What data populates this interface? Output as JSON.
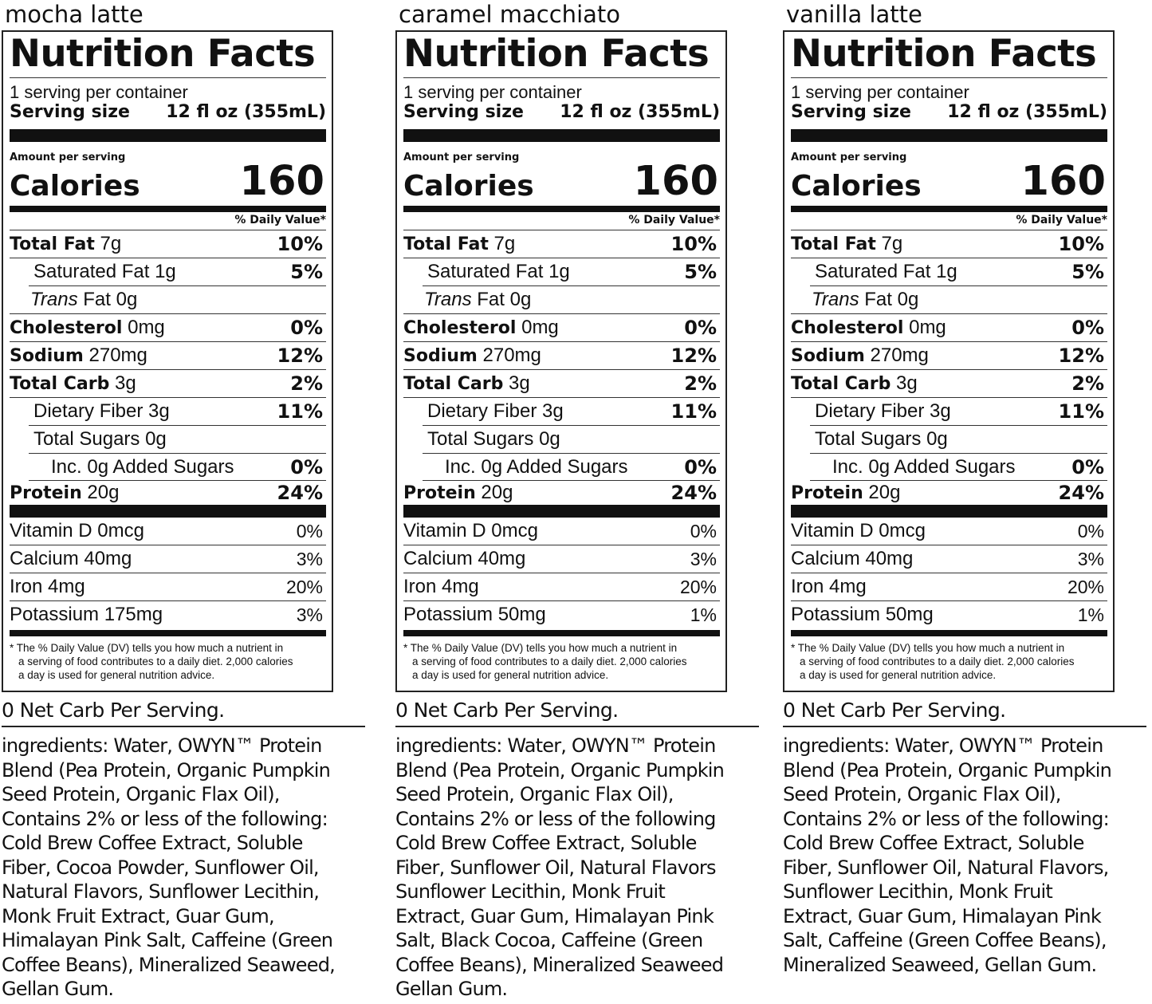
{
  "panels": [
    {
      "product": "mocha latte",
      "title": "Nutrition Facts",
      "servings_per_container": "1 serving per container",
      "serving_size_label": "Serving size",
      "serving_size_value": "12 fl oz (355mL)",
      "amount_per_serving": "Amount per serving",
      "calories_label": "Calories",
      "calories_value": "160",
      "dv_header": "% Daily Value*",
      "total_fat_label": "Total Fat",
      "total_fat_amount": "7g",
      "total_fat_dv": "10%",
      "sat_fat": "Saturated Fat 1g",
      "sat_fat_dv": "5%",
      "trans_fat_italic": "Trans",
      "trans_fat_rest": " Fat 0g",
      "cholesterol_label": "Cholesterol",
      "cholesterol_amount": "0mg",
      "cholesterol_dv": "0%",
      "sodium_label": "Sodium",
      "sodium_amount": "270mg",
      "sodium_dv": "12%",
      "carb_label": "Total Carb",
      "carb_amount": "3g",
      "carb_dv": "2%",
      "fiber": "Dietary Fiber 3g",
      "fiber_dv": "11%",
      "sugars": "Total Sugars 0g",
      "added_sugars": "Inc. 0g Added Sugars",
      "added_sugars_dv": "0%",
      "protein_label": "Protein",
      "protein_amount": "20g",
      "protein_dv": "24%",
      "vitamin_d": "Vitamin D 0mcg",
      "vitamin_d_dv": "0%",
      "calcium": "Calcium 40mg",
      "calcium_dv": "3%",
      "iron": "Iron 4mg",
      "iron_dv": "20%",
      "potassium": "Potassium 175mg",
      "potassium_dv": "3%",
      "footnote_1": "* The % Daily Value (DV) tells you how much a nutrient in",
      "footnote_2": "a serving of food contributes to a daily diet. 2,000 calories",
      "footnote_3": "a day is used for general nutrition advice.",
      "net_carb": "0 Net Carb Per Serving.",
      "ingredients_lines": [
        "ingredients: Water, OWYN™ Protein",
        "Blend (Pea Protein, Organic Pumpkin",
        "Seed Protein, Organic Flax Oil),",
        "Contains 2% or less of the following:",
        "Cold Brew Coffee Extract, Soluble",
        "Fiber, Cocoa Powder, Sunflower Oil,",
        "Natural Flavors, Sunflower Lecithin,",
        "Monk Fruit Extract, Guar Gum,",
        "Himalayan Pink Salt, Caffeine (Green",
        "Coffee Beans), Mineralized Seaweed,",
        "Gellan Gum."
      ]
    },
    {
      "product": "caramel macchiato",
      "title": "Nutrition Facts",
      "servings_per_container": "1 serving per container",
      "serving_size_label": "Serving size",
      "serving_size_value": "12 fl oz (355mL)",
      "amount_per_serving": "Amount per serving",
      "calories_label": "Calories",
      "calories_value": "160",
      "dv_header": "% Daily Value*",
      "total_fat_label": "Total Fat",
      "total_fat_amount": "7g",
      "total_fat_dv": "10%",
      "sat_fat": "Saturated Fat 1g",
      "sat_fat_dv": "5%",
      "trans_fat_italic": "Trans",
      "trans_fat_rest": " Fat 0g",
      "cholesterol_label": "Cholesterol",
      "cholesterol_amount": "0mg",
      "cholesterol_dv": "0%",
      "sodium_label": "Sodium",
      "sodium_amount": "270mg",
      "sodium_dv": "12%",
      "carb_label": "Total Carb",
      "carb_amount": "3g",
      "carb_dv": "2%",
      "fiber": "Dietary Fiber 3g",
      "fiber_dv": "11%",
      "sugars": "Total Sugars 0g",
      "added_sugars": "Inc. 0g Added Sugars",
      "added_sugars_dv": "0%",
      "protein_label": "Protein",
      "protein_amount": "20g",
      "protein_dv": "24%",
      "vitamin_d": "Vitamin D 0mcg",
      "vitamin_d_dv": "0%",
      "calcium": "Calcium 40mg",
      "calcium_dv": "3%",
      "iron": "Iron 4mg",
      "iron_dv": "20%",
      "potassium": "Potassium 50mg",
      "potassium_dv": "1%",
      "footnote_1": "* The % Daily Value (DV) tells you how much a nutrient in",
      "footnote_2": "a serving of food contributes to a daily diet. 2,000 calories",
      "footnote_3": "a day is used for general nutrition advice.",
      "net_carb": "0 Net Carb Per Serving.",
      "ingredients_lines": [
        "ingredients: Water, OWYN™ Protein",
        "Blend (Pea Protein, Organic Pumpkin",
        "Seed Protein, Organic Flax Oil),",
        "Contains 2% or less of the following",
        "Cold Brew Coffee Extract, Soluble",
        "Fiber, Sunflower Oil, Natural Flavors",
        "Sunflower Lecithin, Monk Fruit",
        "Extract, Guar Gum, Himalayan Pink",
        "Salt, Black Cocoa, Caffeine (Green",
        "Coffee Beans), Mineralized Seaweed",
        "Gellan Gum."
      ]
    },
    {
      "product": "vanilla latte",
      "title": "Nutrition Facts",
      "servings_per_container": "1 serving per container",
      "serving_size_label": "Serving size",
      "serving_size_value": "12 fl oz (355mL)",
      "amount_per_serving": "Amount per serving",
      "calories_label": "Calories",
      "calories_value": "160",
      "dv_header": "% Daily Value*",
      "total_fat_label": "Total Fat",
      "total_fat_amount": "7g",
      "total_fat_dv": "10%",
      "sat_fat": "Saturated Fat 1g",
      "sat_fat_dv": "5%",
      "trans_fat_italic": "Trans",
      "trans_fat_rest": " Fat 0g",
      "cholesterol_label": "Cholesterol",
      "cholesterol_amount": "0mg",
      "cholesterol_dv": "0%",
      "sodium_label": "Sodium",
      "sodium_amount": "270mg",
      "sodium_dv": "12%",
      "carb_label": "Total Carb",
      "carb_amount": "3g",
      "carb_dv": "2%",
      "fiber": "Dietary Fiber 3g",
      "fiber_dv": "11%",
      "sugars": "Total Sugars 0g",
      "added_sugars": "Inc. 0g Added Sugars",
      "added_sugars_dv": "0%",
      "protein_label": "Protein",
      "protein_amount": "20g",
      "protein_dv": "24%",
      "vitamin_d": "Vitamin D 0mcg",
      "vitamin_d_dv": "0%",
      "calcium": "Calcium 40mg",
      "calcium_dv": "3%",
      "iron": "Iron 4mg",
      "iron_dv": "20%",
      "potassium": "Potassium 50mg",
      "potassium_dv": "1%",
      "footnote_1": "* The % Daily Value (DV) tells you how much a nutrient in",
      "footnote_2": "a serving of food contributes to a daily diet. 2,000 calories",
      "footnote_3": "a day is used for general nutrition advice.",
      "net_carb": "0 Net Carb Per Serving.",
      "ingredients_lines": [
        "ingredients: Water, OWYN™ Protein",
        "Blend (Pea Protein, Organic Pumpkin",
        "Seed Protein, Organic Flax Oil),",
        "Contains 2% or less of the following:",
        "Cold Brew Coffee Extract, Soluble",
        "Fiber, Sunflower Oil, Natural Flavors,",
        "Sunflower Lecithin, Monk Fruit",
        "Extract, Guar Gum, Himalayan Pink",
        "Salt, Caffeine (Green Coffee Beans),",
        "Mineralized Seaweed, Gellan Gum."
      ]
    }
  ]
}
